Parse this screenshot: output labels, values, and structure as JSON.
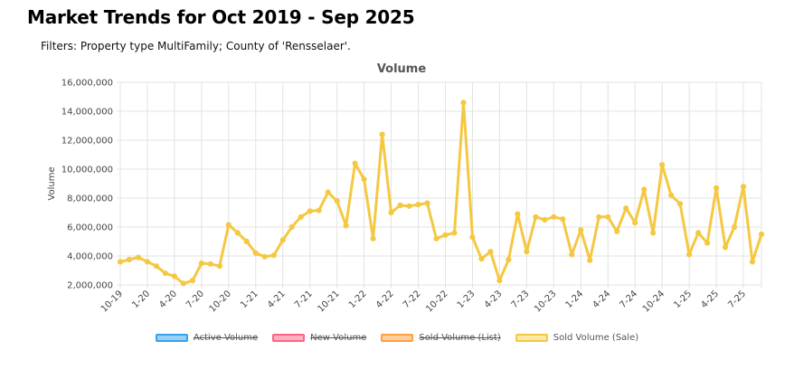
{
  "page": {
    "title": "Market Trends for Oct 2019 - Sep 2025",
    "filters": "Filters: Property type MultiFamily; County of 'Rensselaer'."
  },
  "chart_data": {
    "type": "line",
    "title": "Volume",
    "xlabel": "",
    "ylabel": "Volume",
    "ylim": [
      2000000,
      16000000
    ],
    "yticks": [
      "2,000,000",
      "4,000,000",
      "6,000,000",
      "8,000,000",
      "10,000,000",
      "12,000,000",
      "14,000,000",
      "16,000,000"
    ],
    "ytick_values": [
      2000000,
      4000000,
      6000000,
      8000000,
      10000000,
      12000000,
      14000000,
      16000000
    ],
    "x_tick_labels": [
      "10-19",
      "1-20",
      "4-20",
      "7-20",
      "10-20",
      "1-21",
      "4-21",
      "7-21",
      "10-21",
      "1-22",
      "4-22",
      "7-22",
      "10-22",
      "1-23",
      "4-23",
      "7-23",
      "10-23",
      "1-24",
      "4-24",
      "7-24",
      "10-24",
      "1-25",
      "4-25",
      "7-25"
    ],
    "grid": true,
    "legend_position": "bottom",
    "legend": [
      {
        "label": "Active Volume",
        "hidden": true,
        "stroke": "#36a2eb",
        "fill": "#9ad0f5"
      },
      {
        "label": "New Volume",
        "hidden": true,
        "stroke": "#ff6384",
        "fill": "#ffb1c1"
      },
      {
        "label": "Sold Volume (List)",
        "hidden": true,
        "stroke": "#ff9f40",
        "fill": "#ffcf9f"
      },
      {
        "label": "Sold Volume (Sale)",
        "hidden": false,
        "stroke": "#f5c842",
        "fill": "#fde8a6"
      }
    ],
    "series": [
      {
        "name": "Sold Volume (Sale)",
        "color": "#f5c842",
        "values": [
          3600000,
          3750000,
          3900000,
          3600000,
          3300000,
          2800000,
          2600000,
          2100000,
          2300000,
          3500000,
          3450000,
          3300000,
          6150000,
          5600000,
          5000000,
          4200000,
          3950000,
          4050000,
          5100000,
          6000000,
          6700000,
          7100000,
          7150000,
          8400000,
          7800000,
          6100000,
          10400000,
          9300000,
          5200000,
          12400000,
          7000000,
          7500000,
          7450000,
          7550000,
          7650000,
          5200000,
          5450000,
          5600000,
          14600000,
          5300000,
          3800000,
          4300000,
          2300000,
          3750000,
          6900000,
          4300000,
          6700000,
          6500000,
          6700000,
          6550000,
          4100000,
          5800000,
          3700000,
          6700000,
          6700000,
          5700000,
          7300000,
          6300000,
          8600000,
          5600000,
          10300000,
          8200000,
          7600000,
          4100000,
          5600000,
          4900000,
          8700000,
          4600000,
          6000000,
          8800000,
          3600000,
          5500000
        ]
      }
    ]
  }
}
